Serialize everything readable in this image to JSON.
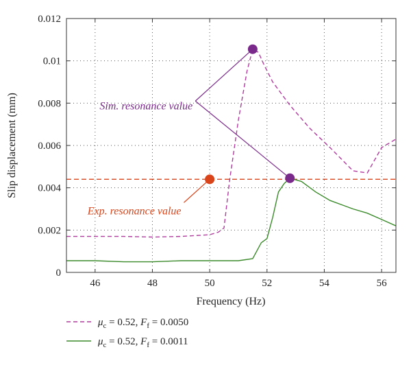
{
  "chart_data": {
    "type": "line",
    "xlabel": "Frequency (Hz)",
    "ylabel": "Slip displacement (mm)",
    "xlim": [
      45,
      56.5
    ],
    "ylim": [
      0,
      0.012
    ],
    "x_ticks": [
      46,
      48,
      50,
      52,
      54,
      56
    ],
    "y_ticks": [
      0,
      0.002,
      0.004,
      0.006,
      0.008,
      0.01,
      0.012
    ],
    "grid": true,
    "legend_position": "bottom-left, below plot",
    "series": [
      {
        "mu": "0.52",
        "ff": "0.0050",
        "color": "#b03a9e",
        "style": "dashed",
        "points": [
          [
            45,
            0.0017
          ],
          [
            46,
            0.0017
          ],
          [
            47,
            0.0017
          ],
          [
            48,
            0.00167
          ],
          [
            49,
            0.0017
          ],
          [
            50,
            0.00178
          ],
          [
            50.3,
            0.0019
          ],
          [
            50.5,
            0.0021
          ],
          [
            50.7,
            0.0044
          ],
          [
            51.0,
            0.0072
          ],
          [
            51.3,
            0.0095
          ],
          [
            51.5,
            0.01055
          ],
          [
            51.7,
            0.0104
          ],
          [
            51.9,
            0.0098
          ],
          [
            52.2,
            0.009
          ],
          [
            52.8,
            0.0079
          ],
          [
            53.5,
            0.0068
          ],
          [
            54.2,
            0.0059
          ],
          [
            55,
            0.0048
          ],
          [
            55.5,
            0.0047
          ],
          [
            56,
            0.0059
          ],
          [
            56.5,
            0.0063
          ]
        ]
      },
      {
        "mu": "0.52",
        "ff": "0.0011",
        "color": "#3a8a2a",
        "style": "solid",
        "points": [
          [
            45,
            0.00055
          ],
          [
            46,
            0.00055
          ],
          [
            47,
            0.0005
          ],
          [
            48,
            0.0005
          ],
          [
            49,
            0.00055
          ],
          [
            50,
            0.00055
          ],
          [
            51,
            0.00055
          ],
          [
            51.5,
            0.00065
          ],
          [
            51.8,
            0.0014
          ],
          [
            52,
            0.0016
          ],
          [
            52.2,
            0.0026
          ],
          [
            52.4,
            0.0038
          ],
          [
            52.6,
            0.0042
          ],
          [
            52.8,
            0.00445
          ],
          [
            53.2,
            0.0043
          ],
          [
            53.7,
            0.0038
          ],
          [
            54.2,
            0.0034
          ],
          [
            55,
            0.003
          ],
          [
            55.5,
            0.0028
          ],
          [
            56,
            0.0025
          ],
          [
            56.5,
            0.0022
          ]
        ]
      }
    ],
    "reference_line": {
      "y": 0.0044,
      "color": "#d9441a",
      "style": "dashed"
    },
    "markers": [
      {
        "x": 51.5,
        "y": 0.01055,
        "color": "#7a2a8a"
      },
      {
        "x": 52.8,
        "y": 0.00445,
        "color": "#7a2a8a"
      },
      {
        "x": 50.0,
        "y": 0.0044,
        "color": "#d9441a"
      }
    ],
    "annotations": [
      {
        "text": "Sim. resonance value",
        "color": "#7a2a8a",
        "x": 49.5,
        "y": 0.0081,
        "targets": [
          0,
          1
        ]
      },
      {
        "text": "Exp. resonance value",
        "color": "#d9441a",
        "x": 49.1,
        "y": 0.0033,
        "targets": [
          2
        ]
      }
    ]
  }
}
